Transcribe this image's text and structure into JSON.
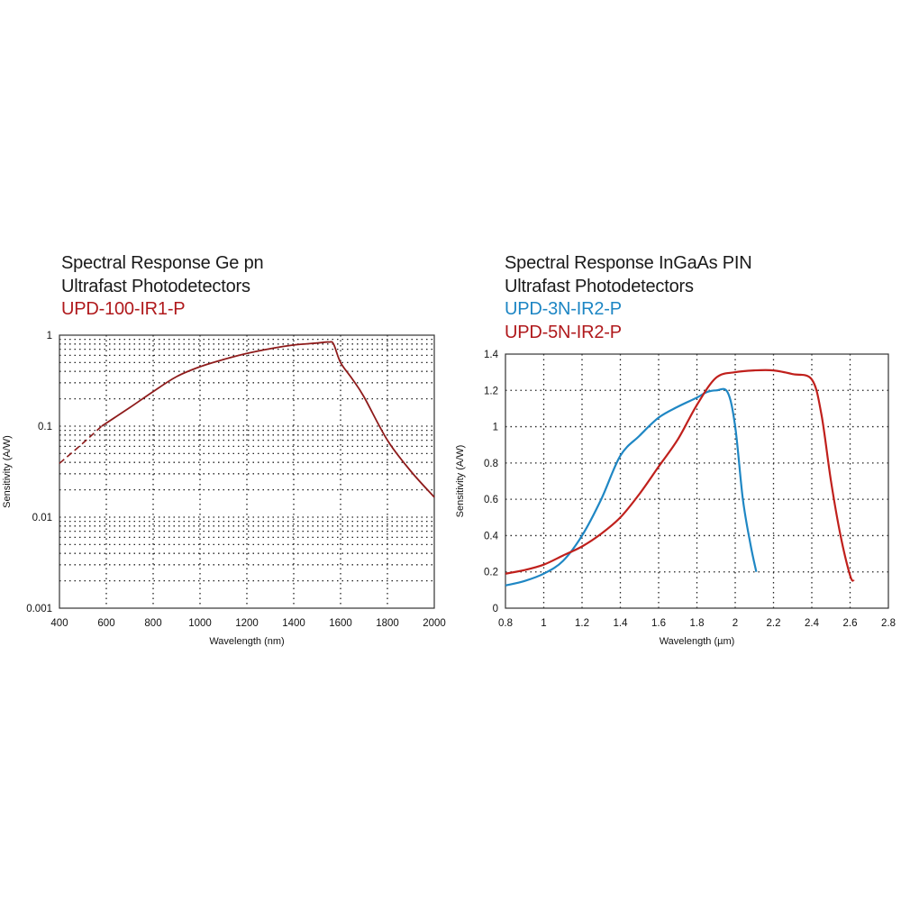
{
  "colors": {
    "ge_curve": "#8e1b1b",
    "blue_series": "#1f87c4",
    "red_series": "#c0201c",
    "red_label": "#b0191c",
    "blue_label": "#1d86c4"
  },
  "chart_data": [
    {
      "type": "line",
      "title_lines": [
        "Spectral Response Ge pn",
        "Ultrafast Photodetectors"
      ],
      "xlabel": "Wavelength (nm)",
      "ylabel": "Sensitivity (A/W)",
      "xlim": [
        400,
        2000
      ],
      "ylim": [
        0.001,
        1
      ],
      "yscale": "log",
      "grid": true,
      "xticks": [
        "400",
        "600",
        "800",
        "1000",
        "1200",
        "1400",
        "1600",
        "1800",
        "2000"
      ],
      "yticks": [
        "1",
        "0.1",
        "0.01",
        "0.001"
      ],
      "series": [
        {
          "name": "UPD-100-IR1-P",
          "color": "#8e1b1b",
          "dashed_until": 580,
          "x": [
            400,
            500,
            580,
            700,
            800,
            900,
            1000,
            1100,
            1200,
            1300,
            1400,
            1500,
            1550,
            1570,
            1600,
            1650,
            1700,
            1800,
            1900,
            2000
          ],
          "y": [
            0.039,
            0.065,
            0.1,
            0.16,
            0.24,
            0.35,
            0.45,
            0.54,
            0.63,
            0.71,
            0.78,
            0.82,
            0.84,
            0.8,
            0.5,
            0.33,
            0.21,
            0.07,
            0.032,
            0.0166
          ]
        }
      ]
    },
    {
      "type": "line",
      "title_lines": [
        "Spectral Response InGaAs PIN",
        "Ultrafast Photodetectors"
      ],
      "xlabel": "Wavelength (µm)",
      "ylabel": "Sensitivity (A/W)",
      "xlim": [
        0.8,
        2.8
      ],
      "ylim": [
        0,
        1.4
      ],
      "grid": true,
      "xticks": [
        "0.8",
        "1",
        "1.2",
        "1.4",
        "1.6",
        "1.8",
        "2",
        "2.2",
        "2.4",
        "2.6",
        "2.8"
      ],
      "yticks": [
        "0",
        "0.2",
        "0.4",
        "0.6",
        "0.8",
        "1",
        "1.2",
        "1.4"
      ],
      "series": [
        {
          "name": "UPD-3N-IR2-P",
          "color": "#1f87c4",
          "x": [
            0.8,
            0.9,
            1.0,
            1.1,
            1.2,
            1.3,
            1.4,
            1.5,
            1.6,
            1.7,
            1.8,
            1.85,
            1.9,
            1.96,
            2.0,
            2.04,
            2.08,
            2.11
          ],
          "y": [
            0.125,
            0.15,
            0.19,
            0.26,
            0.4,
            0.6,
            0.84,
            0.95,
            1.05,
            1.11,
            1.16,
            1.19,
            1.2,
            1.19,
            1.0,
            0.6,
            0.35,
            0.2
          ]
        },
        {
          "name": "UPD-5N-IR2-P",
          "color": "#c0201c",
          "x": [
            0.8,
            0.9,
            1.0,
            1.1,
            1.2,
            1.3,
            1.4,
            1.5,
            1.6,
            1.7,
            1.8,
            1.9,
            2.0,
            2.1,
            2.2,
            2.3,
            2.4,
            2.45,
            2.5,
            2.55,
            2.6,
            2.62
          ],
          "y": [
            0.19,
            0.21,
            0.24,
            0.29,
            0.34,
            0.41,
            0.5,
            0.63,
            0.78,
            0.93,
            1.12,
            1.27,
            1.3,
            1.31,
            1.31,
            1.29,
            1.26,
            1.07,
            0.7,
            0.4,
            0.18,
            0.15
          ]
        }
      ]
    }
  ]
}
